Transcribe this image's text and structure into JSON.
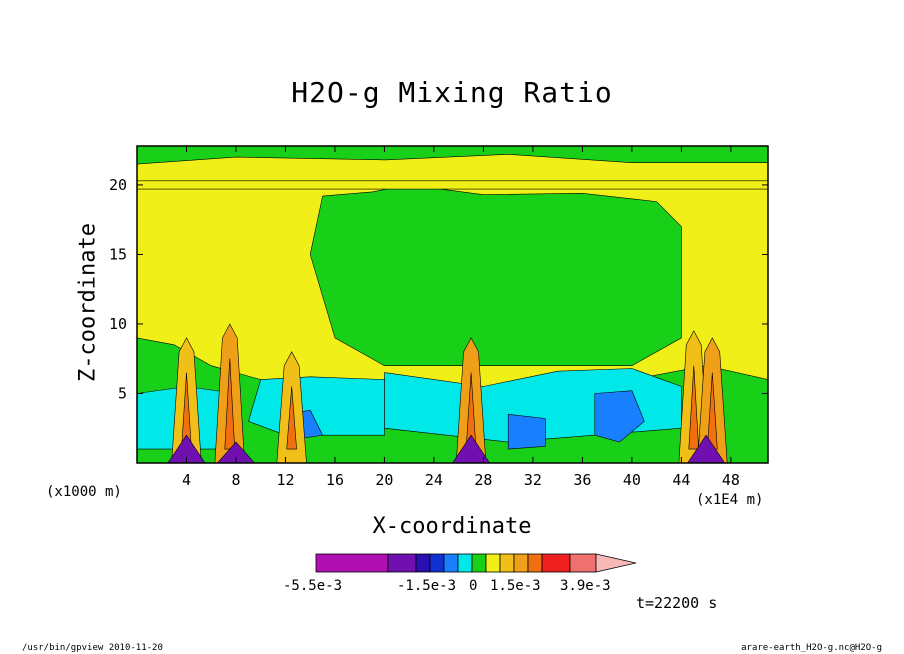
{
  "chart_data": {
    "type": "heatmap",
    "title": "H2O-g Mixing Ratio",
    "xlabel": "X-coordinate",
    "ylabel": "Z-coordinate",
    "x_unit_label": "(x1000 m)",
    "x_scale_label": "(x1E4 m)",
    "xlim": [
      0,
      51
    ],
    "ylim": [
      0,
      22.8
    ],
    "x_ticks": [
      "4",
      "8",
      "12",
      "16",
      "20",
      "24",
      "28",
      "32",
      "36",
      "40",
      "44",
      "48"
    ],
    "y_ticks": [
      "5",
      "10",
      "15",
      "20"
    ],
    "colorbar": {
      "labels": [
        "-5.5e-3",
        "-1.5e-3",
        "0",
        "1.5e-3",
        "3.9e-3"
      ],
      "colors": [
        "#b010b0",
        "#7010b0",
        "#2a10b0",
        "#1030d0",
        "#1880ff",
        "#00e8e8",
        "#18d018",
        "#f0f018",
        "#f0c018",
        "#f0a018",
        "#f07010",
        "#f02020",
        "#f07070",
        "#f8b8b8"
      ],
      "min": -0.0055,
      "max": 0.0039
    },
    "time_label": "t=22200 s",
    "footer_left": "/usr/bin/gpview  2010-11-20",
    "footer_right": "arare-earth_H2O-g.nc@H2O-g"
  }
}
